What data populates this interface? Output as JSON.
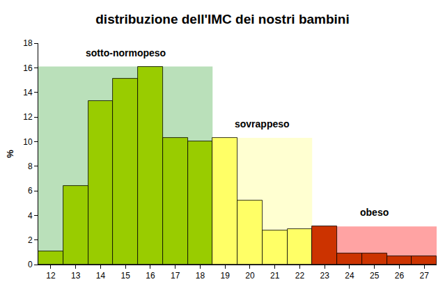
{
  "chart_data": {
    "type": "bar",
    "title": "distribuzione dell'IMC dei nostri bambini",
    "y_label": "%",
    "categories": [
      "12",
      "13",
      "14",
      "15",
      "16",
      "17",
      "18",
      "19",
      "20",
      "21",
      "22",
      "23",
      "24",
      "25",
      "26",
      "27"
    ],
    "values": [
      1.1,
      6.4,
      13.3,
      15.1,
      16.1,
      10.3,
      10.0,
      10.3,
      5.2,
      2.8,
      2.9,
      3.1,
      0.9,
      0.9,
      0.7,
      0.7
    ],
    "colors": [
      "#99cc00",
      "#99cc00",
      "#99cc00",
      "#99cc00",
      "#99cc00",
      "#99cc00",
      "#99cc00",
      "#ffff66",
      "#ffff66",
      "#ffff66",
      "#ffff66",
      "#cc3300",
      "#cc3300",
      "#cc3300",
      "#cc3300",
      "#cc3300"
    ],
    "regions": [
      {
        "label": "sotto-normopeso",
        "from": "12",
        "to": "18",
        "color": "#66bb66"
      },
      {
        "label": "sovrappeso",
        "from": "19",
        "to": "22",
        "color": "#ffff99"
      },
      {
        "label": "obeso",
        "from": "23",
        "to": "27",
        "color": "#ff3333"
      }
    ],
    "ylim": [
      0,
      18
    ],
    "yticks": [
      0,
      2,
      4,
      6,
      8,
      10,
      12,
      14,
      16,
      18
    ],
    "grid": false
  }
}
